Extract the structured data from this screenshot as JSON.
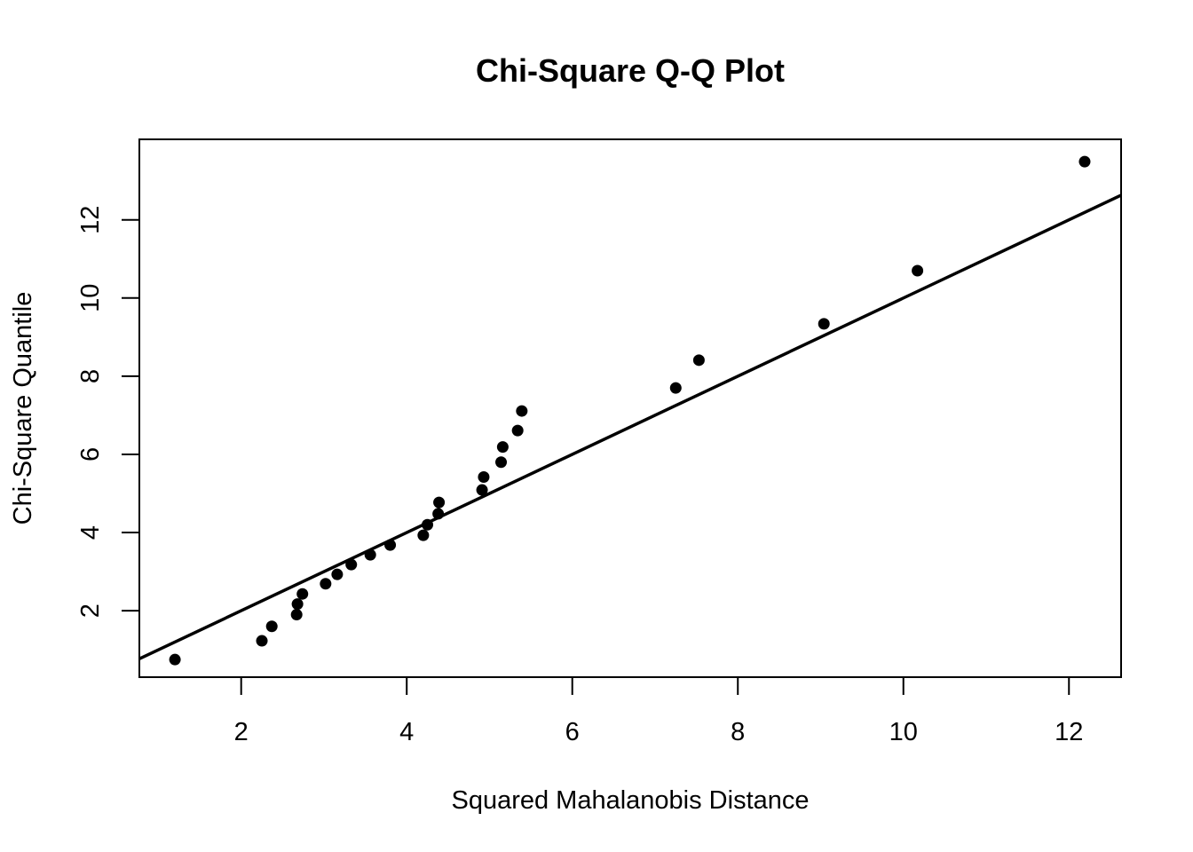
{
  "chart_data": {
    "type": "scatter",
    "title": "Chi-Square Q-Q Plot",
    "xlabel": "Squared Mahalanobis Distance",
    "ylabel": "Chi-Square Quantile",
    "xlim": [
      0.77,
      12.63
    ],
    "ylim": [
      0.3,
      14.06
    ],
    "x_ticks": [
      2,
      4,
      6,
      8,
      10,
      12
    ],
    "y_ticks": [
      2,
      4,
      6,
      8,
      10,
      12
    ],
    "grid": false,
    "legend": "none",
    "point_color": "#000000",
    "reference_line": {
      "intercept": 0,
      "slope": 1
    },
    "points": [
      {
        "x": 1.2,
        "y": 0.75
      },
      {
        "x": 2.25,
        "y": 1.23
      },
      {
        "x": 2.37,
        "y": 1.6
      },
      {
        "x": 2.67,
        "y": 1.9
      },
      {
        "x": 2.68,
        "y": 2.17
      },
      {
        "x": 2.74,
        "y": 2.43
      },
      {
        "x": 3.02,
        "y": 2.69
      },
      {
        "x": 3.16,
        "y": 2.93
      },
      {
        "x": 3.33,
        "y": 3.18
      },
      {
        "x": 3.56,
        "y": 3.43
      },
      {
        "x": 3.8,
        "y": 3.68
      },
      {
        "x": 4.2,
        "y": 3.93
      },
      {
        "x": 4.25,
        "y": 4.2
      },
      {
        "x": 4.38,
        "y": 4.48
      },
      {
        "x": 4.39,
        "y": 4.77
      },
      {
        "x": 4.91,
        "y": 5.09
      },
      {
        "x": 4.93,
        "y": 5.42
      },
      {
        "x": 5.14,
        "y": 5.8
      },
      {
        "x": 5.16,
        "y": 6.19
      },
      {
        "x": 5.34,
        "y": 6.61
      },
      {
        "x": 5.39,
        "y": 7.11
      },
      {
        "x": 7.25,
        "y": 7.7
      },
      {
        "x": 7.53,
        "y": 8.41
      },
      {
        "x": 9.04,
        "y": 9.34
      },
      {
        "x": 10.17,
        "y": 10.7
      },
      {
        "x": 12.19,
        "y": 13.49
      }
    ]
  }
}
